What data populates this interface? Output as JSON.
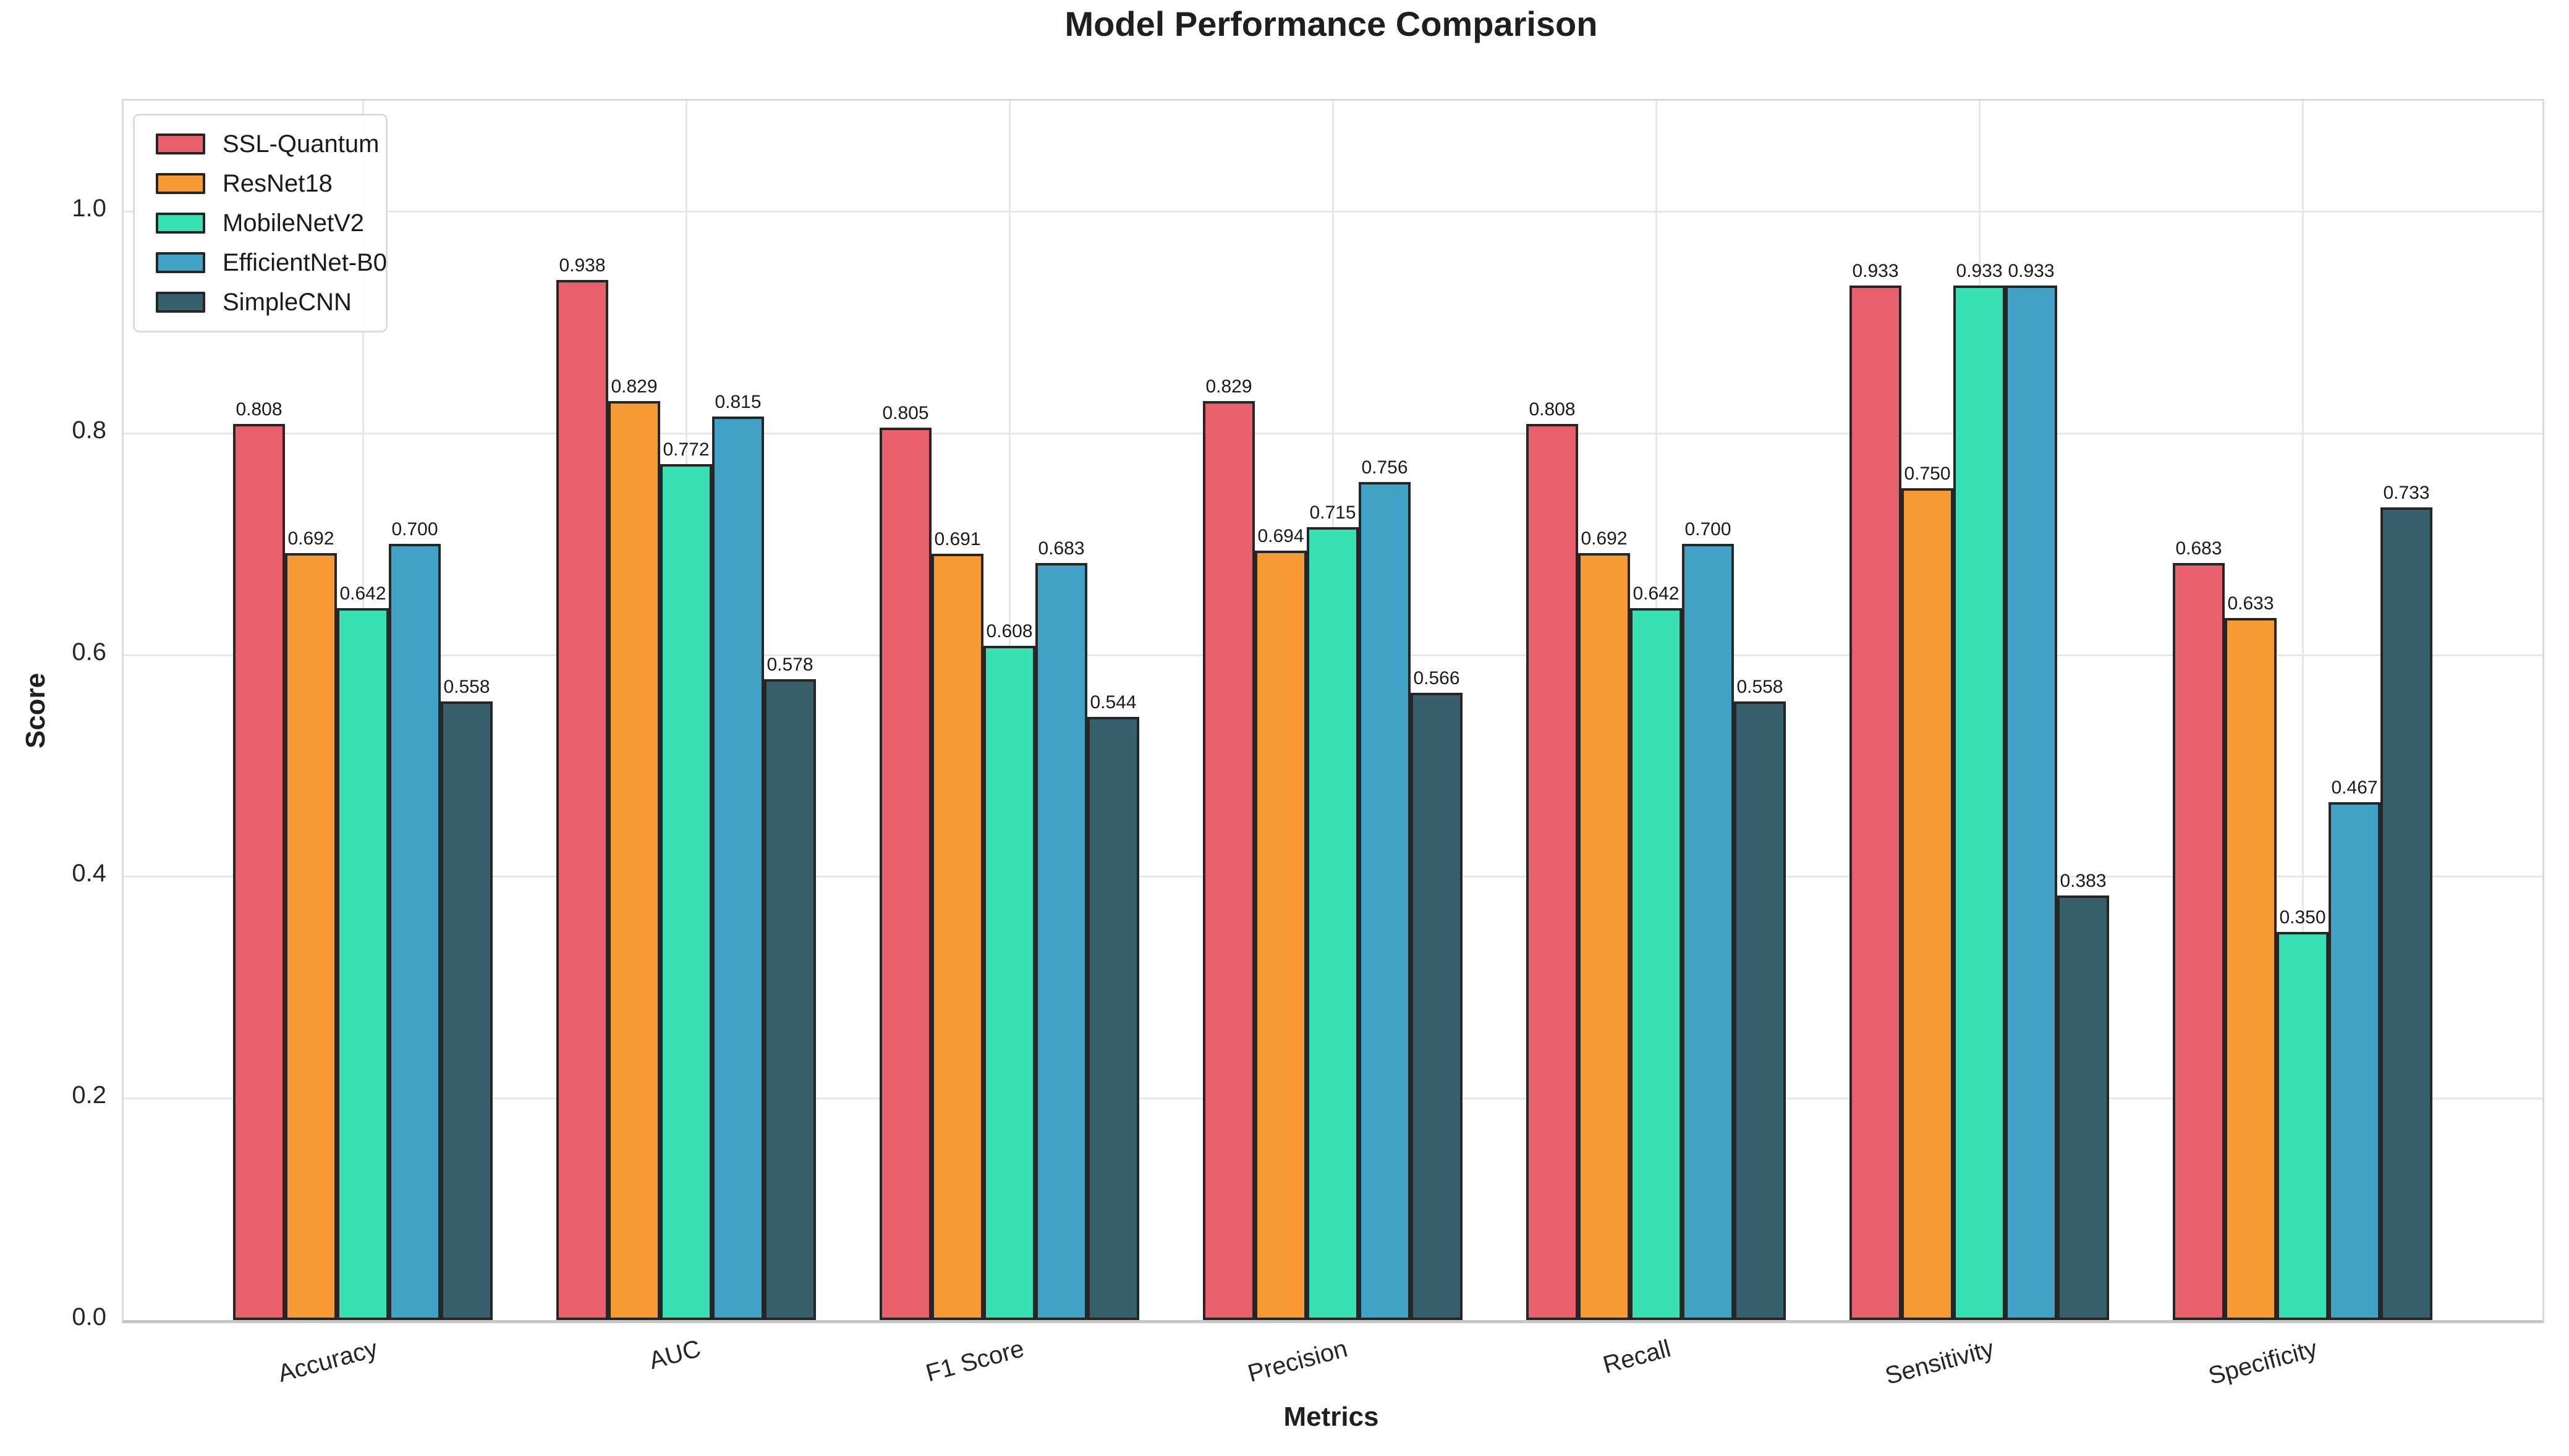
{
  "title": "Model Performance Comparison",
  "chart_data": {
    "type": "bar",
    "title": "Model Performance Comparison",
    "xlabel": "Metrics",
    "ylabel": "Score",
    "categories": [
      "Accuracy",
      "AUC",
      "F1 Score",
      "Precision",
      "Recall",
      "Sensitivity",
      "Specificity"
    ],
    "series": [
      {
        "name": "SSL-Quantum",
        "color": "#e8606b",
        "values": [
          0.808,
          0.938,
          0.805,
          0.829,
          0.808,
          0.933,
          0.683
        ]
      },
      {
        "name": "ResNet18",
        "color": "#f79a34",
        "values": [
          0.692,
          0.829,
          0.691,
          0.694,
          0.692,
          0.75,
          0.633
        ]
      },
      {
        "name": "MobileNetV2",
        "color": "#38e0b4",
        "values": [
          0.642,
          0.772,
          0.608,
          0.715,
          0.642,
          0.933,
          0.35
        ]
      },
      {
        "name": "EfficientNet-B0",
        "color": "#41a2c6",
        "values": [
          0.7,
          0.815,
          0.683,
          0.756,
          0.7,
          0.933,
          0.467
        ]
      },
      {
        "name": "SimpleCNN",
        "color": "#375f6e",
        "values": [
          0.558,
          0.578,
          0.544,
          0.566,
          0.558,
          0.383,
          0.733
        ]
      }
    ],
    "ytick_values": [
      0.0,
      0.2,
      0.4,
      0.6,
      0.8,
      1.0
    ],
    "ylim": [
      0.0,
      1.1
    ],
    "value_label_decimals": 3,
    "bar_edge_color": "#262626",
    "grid": true,
    "legend_position": "upper left"
  }
}
